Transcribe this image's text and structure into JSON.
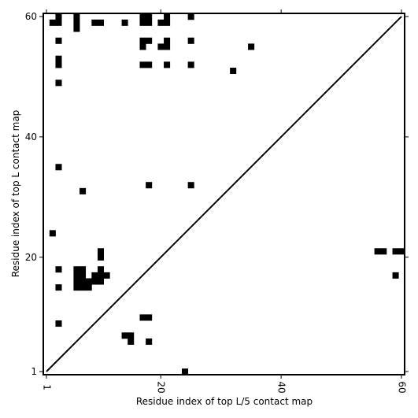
{
  "chart_data": {
    "type": "heatmap",
    "title": "",
    "xlabel": "Residue index of top L/5 contact map",
    "ylabel": "Residue index of top L contact map",
    "xlim": [
      1,
      60
    ],
    "ylim": [
      1,
      60
    ],
    "x_ticks": [
      {
        "value": 1,
        "label": "1"
      },
      {
        "value": 20,
        "label": "20"
      },
      {
        "value": 40,
        "label": "40"
      },
      {
        "value": 60,
        "label": "60"
      }
    ],
    "y_ticks": [
      {
        "value": 1,
        "label": "1"
      },
      {
        "value": 20,
        "label": "20"
      },
      {
        "value": 40,
        "label": "40"
      },
      {
        "value": 60,
        "label": "60"
      }
    ],
    "diagonal_line": true,
    "cell_color": "#000000",
    "background_color": "#ffffff",
    "cells": [
      [
        3,
        60
      ],
      [
        3,
        59
      ],
      [
        2,
        59
      ],
      [
        3,
        56
      ],
      [
        3,
        53
      ],
      [
        3,
        52
      ],
      [
        3,
        49
      ],
      [
        3,
        35
      ],
      [
        3,
        18
      ],
      [
        3,
        15
      ],
      [
        3,
        9
      ],
      [
        2,
        24
      ],
      [
        6,
        60
      ],
      [
        6,
        59
      ],
      [
        6,
        58
      ],
      [
        7,
        31
      ],
      [
        6,
        18
      ],
      [
        7,
        18
      ],
      [
        6,
        17
      ],
      [
        7,
        17
      ],
      [
        6,
        16
      ],
      [
        7,
        16
      ],
      [
        8,
        16
      ],
      [
        9,
        16
      ],
      [
        6,
        15
      ],
      [
        7,
        15
      ],
      [
        8,
        15
      ],
      [
        9,
        17
      ],
      [
        10,
        17
      ],
      [
        11,
        17
      ],
      [
        10,
        18
      ],
      [
        10,
        16
      ],
      [
        10,
        20
      ],
      [
        10,
        21
      ],
      [
        9,
        59
      ],
      [
        10,
        59
      ],
      [
        14,
        59
      ],
      [
        17,
        60
      ],
      [
        18,
        60
      ],
      [
        17,
        59
      ],
      [
        18,
        59
      ],
      [
        17,
        56
      ],
      [
        18,
        56
      ],
      [
        17,
        55
      ],
      [
        17,
        52
      ],
      [
        18,
        52
      ],
      [
        21,
        60
      ],
      [
        20,
        59
      ],
      [
        21,
        59
      ],
      [
        21,
        56
      ],
      [
        20,
        55
      ],
      [
        21,
        55
      ],
      [
        21,
        52
      ],
      [
        18,
        32
      ],
      [
        17,
        10
      ],
      [
        18,
        10
      ],
      [
        18,
        6
      ],
      [
        14,
        7
      ],
      [
        15,
        7
      ],
      [
        15,
        6
      ],
      [
        24,
        1
      ],
      [
        25,
        60
      ],
      [
        25,
        56
      ],
      [
        25,
        52
      ],
      [
        25,
        32
      ],
      [
        32,
        51
      ],
      [
        35,
        55
      ],
      [
        56,
        21
      ],
      [
        57,
        21
      ],
      [
        59,
        21
      ],
      [
        60,
        21
      ],
      [
        59,
        17
      ]
    ]
  }
}
